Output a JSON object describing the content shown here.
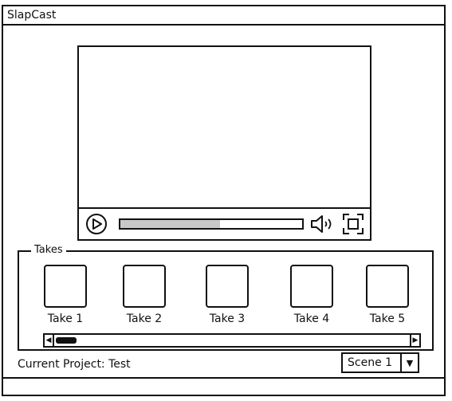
{
  "window": {
    "title": "SlapCast"
  },
  "player": {
    "progress_fraction": 0.55,
    "icons": {
      "play": "play-circle-icon",
      "volume": "speaker-icon",
      "fullscreen": "fullscreen-icon"
    }
  },
  "takes": {
    "legend": "Takes",
    "items": [
      {
        "label": "Take 1"
      },
      {
        "label": "Take 2"
      },
      {
        "label": "Take 3"
      },
      {
        "label": "Take 4"
      },
      {
        "label": "Take 5"
      }
    ],
    "scroll_left_glyph": "◀",
    "scroll_right_glyph": "▶"
  },
  "footer": {
    "project_label": "Current Project: Test",
    "scene_select": {
      "value": "Scene 1",
      "arrow_glyph": "▼"
    }
  }
}
